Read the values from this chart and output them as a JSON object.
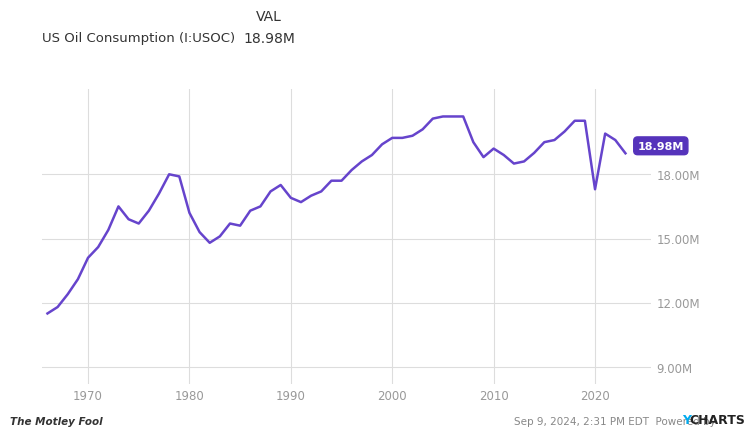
{
  "title_col1_row1": "VAL",
  "title_col1_row2": "18.98M",
  "subtitle": "US Oil Consumption (I:USOC)",
  "line_color": "#6644cc",
  "line_width": 1.8,
  "background_color": "#ffffff",
  "plot_bg_color": "#ffffff",
  "grid_color": "#dddddd",
  "annotation_label": "18.98M",
  "annotation_bg": "#5533bb",
  "annotation_text_color": "#ffffff",
  "footer_right": "Sep 9, 2024, 2:31 PM EDT  Powered by ",
  "footer_ycharts": "YCHARTS",
  "footer_y_color": "#00aaee",
  "footer_charts_color": "#222222",
  "ytick_labels": [
    "9.00M",
    "12.00M",
    "15.00M",
    "18.00M"
  ],
  "ytick_values": [
    9000000,
    12000000,
    15000000,
    18000000
  ],
  "ylim": [
    8200000,
    22000000
  ],
  "xlim": [
    1965.5,
    2025.5
  ],
  "xtick_labels": [
    "1970",
    "1980",
    "1990",
    "2000",
    "2010",
    "2020"
  ],
  "xtick_values": [
    1970,
    1980,
    1990,
    2000,
    2010,
    2020
  ],
  "years": [
    1966,
    1967,
    1968,
    1969,
    1970,
    1971,
    1972,
    1973,
    1974,
    1975,
    1976,
    1977,
    1978,
    1979,
    1980,
    1981,
    1982,
    1983,
    1984,
    1985,
    1986,
    1987,
    1988,
    1989,
    1990,
    1991,
    1992,
    1993,
    1994,
    1995,
    1996,
    1997,
    1998,
    1999,
    2000,
    2001,
    2002,
    2003,
    2004,
    2005,
    2006,
    2007,
    2008,
    2009,
    2010,
    2011,
    2012,
    2013,
    2014,
    2015,
    2016,
    2017,
    2018,
    2019,
    2020,
    2021,
    2022,
    2023
  ],
  "values": [
    11500000,
    11800000,
    12400000,
    13100000,
    14100000,
    14600000,
    15400000,
    16500000,
    15900000,
    15700000,
    16300000,
    17100000,
    18000000,
    17900000,
    16200000,
    15300000,
    14800000,
    15100000,
    15700000,
    15600000,
    16300000,
    16500000,
    17200000,
    17500000,
    16900000,
    16700000,
    17000000,
    17200000,
    17700000,
    17700000,
    18200000,
    18600000,
    18900000,
    19400000,
    19700000,
    19700000,
    19800000,
    20100000,
    20600000,
    20700000,
    20700000,
    20700000,
    19500000,
    18800000,
    19200000,
    18900000,
    18500000,
    18600000,
    19000000,
    19500000,
    19600000,
    20000000,
    20500000,
    20500000,
    17300000,
    19900000,
    19600000,
    18980000
  ]
}
